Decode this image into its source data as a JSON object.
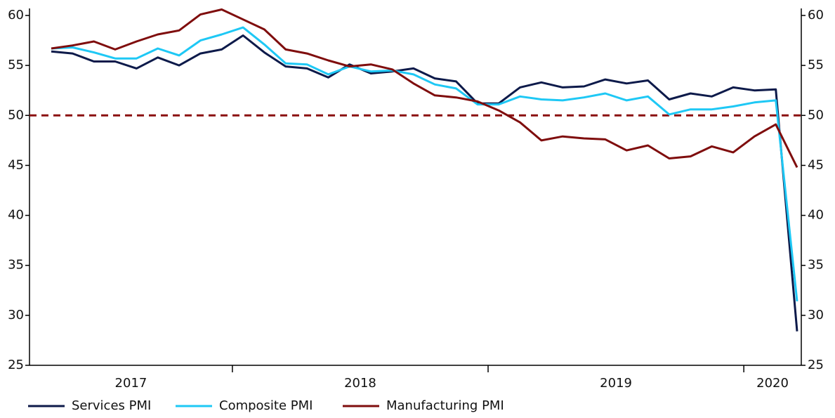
{
  "chart_data": {
    "type": "line",
    "categories": [
      "2017",
      null,
      null,
      null,
      null,
      null,
      null,
      null,
      null,
      "2018",
      null,
      null,
      null,
      null,
      null,
      null,
      null,
      null,
      null,
      null,
      null,
      "2019",
      null,
      null,
      null,
      null,
      null,
      null,
      null,
      null,
      null,
      null,
      null,
      "2020",
      null,
      null
    ],
    "series": [
      {
        "name": "Services PMI",
        "color": "#0d1a4a",
        "values": [
          56.4,
          56.2,
          55.4,
          55.4,
          54.7,
          55.8,
          55.0,
          56.2,
          56.6,
          58.0,
          56.3,
          54.9,
          54.7,
          53.8,
          55.1,
          54.2,
          54.4,
          54.7,
          53.7,
          53.4,
          51.2,
          51.2,
          52.8,
          53.3,
          52.8,
          52.9,
          53.6,
          53.2,
          53.5,
          51.6,
          52.2,
          51.9,
          52.8,
          52.5,
          52.6,
          28.4
        ]
      },
      {
        "name": "Composite PMI",
        "color": "#1ec8f5",
        "values": [
          56.7,
          56.8,
          56.3,
          55.7,
          55.7,
          56.7,
          56.0,
          57.5,
          58.1,
          58.8,
          57.1,
          55.2,
          55.1,
          54.1,
          54.9,
          54.4,
          54.5,
          54.1,
          53.1,
          52.7,
          51.1,
          51.1,
          51.9,
          51.6,
          51.5,
          51.8,
          52.2,
          51.5,
          51.9,
          50.1,
          50.6,
          50.6,
          50.9,
          51.3,
          51.5,
          31.4
        ]
      },
      {
        "name": "Manufacturing PMI",
        "color": "#7f0d0d",
        "values": [
          56.7,
          57.0,
          57.4,
          56.6,
          57.4,
          58.1,
          58.5,
          60.1,
          60.6,
          59.6,
          58.6,
          56.6,
          56.2,
          55.5,
          54.9,
          55.1,
          54.6,
          53.2,
          52.0,
          51.8,
          51.4,
          50.5,
          49.3,
          47.5,
          47.9,
          47.7,
          47.6,
          46.5,
          47.0,
          45.7,
          45.9,
          46.9,
          46.3,
          47.9,
          49.1,
          44.8
        ]
      }
    ],
    "ylim": [
      25,
      60
    ],
    "yticks": [
      25,
      30,
      35,
      40,
      45,
      50,
      55,
      60
    ],
    "y2lim": [
      25,
      60
    ],
    "y2ticks": [
      25,
      30,
      35,
      40,
      45,
      50,
      55,
      60
    ],
    "reference_line": {
      "value": 50,
      "color": "#8b1010",
      "style": "dashed"
    },
    "legend": "bottom-left"
  }
}
